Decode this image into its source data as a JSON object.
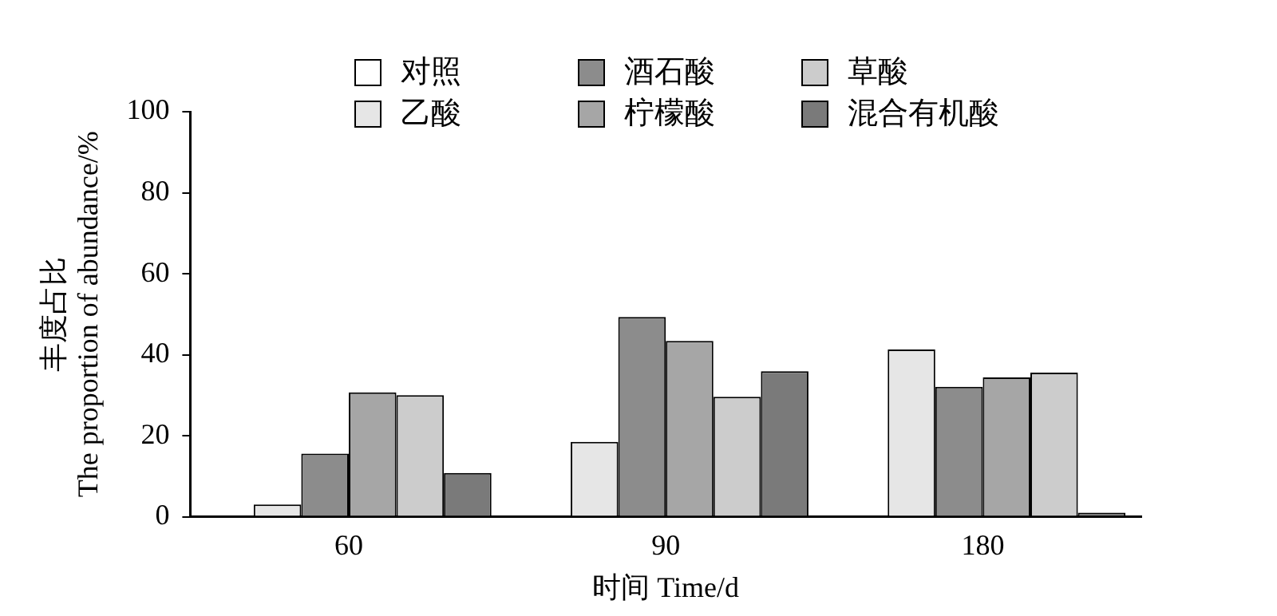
{
  "chart_data": {
    "type": "bar",
    "xlabel": "时间 Time/d",
    "ylabel": "丰度占比\nThe proportion of abundance/%",
    "categories": [
      "60",
      "90",
      "180"
    ],
    "series": [
      {
        "name": "对照",
        "color": "#ffffff",
        "values": [
          0,
          0,
          0
        ]
      },
      {
        "name": "乙酸",
        "color": "#e6e6e6",
        "values": [
          3,
          18.5,
          41.3
        ]
      },
      {
        "name": "酒石酸",
        "color": "#8c8c8c",
        "values": [
          15.6,
          49.3,
          32.1
        ]
      },
      {
        "name": "柠檬酸",
        "color": "#a6a6a6",
        "values": [
          30.7,
          43.4,
          34.4
        ]
      },
      {
        "name": "草酸",
        "color": "#cccccc",
        "values": [
          30,
          29.6,
          35.6
        ]
      },
      {
        "name": "混合有机酸",
        "color": "#7a7a7a",
        "values": [
          10.8,
          35.9,
          1
        ]
      }
    ],
    "ylim": [
      0,
      100
    ],
    "yticks": [
      0,
      20,
      40,
      60,
      80,
      100
    ],
    "grid": false,
    "legend": "top"
  }
}
